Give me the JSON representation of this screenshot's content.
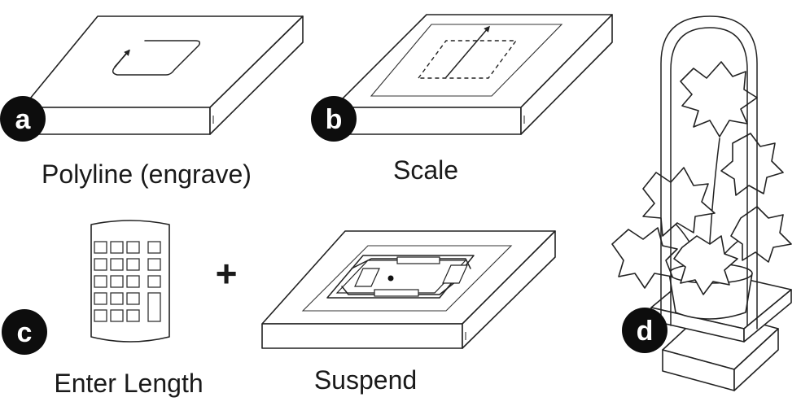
{
  "panels": {
    "a": {
      "badge": "a",
      "caption": "Polyline (engrave)"
    },
    "b": {
      "badge": "b",
      "caption": "Scale"
    },
    "c": {
      "badge": "c",
      "caption": "Enter Length"
    },
    "d": {
      "badge": "d"
    },
    "suspend": {
      "caption": "Suspend"
    }
  },
  "operator": "+",
  "colors": {
    "ink": "#222222",
    "badge": "#0d0d0d",
    "paper": "#ffffff"
  }
}
